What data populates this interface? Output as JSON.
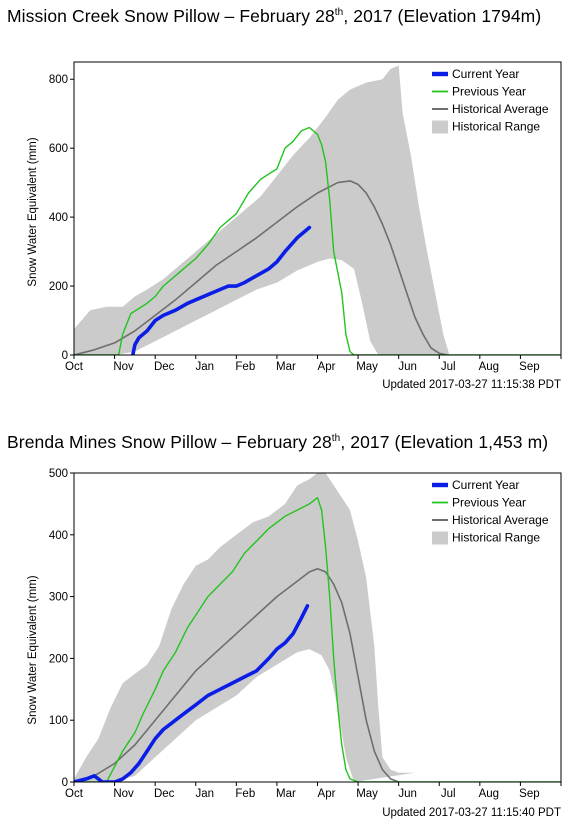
{
  "charts": [
    {
      "title": {
        "prefix": "Mission Creek Snow Pillow – February 28",
        "sup": "th",
        "suffix": ", 2017 (Elevation 1794m)"
      },
      "ylabel": "Snow Water Equivalent (mm)",
      "updated": "Updated 2017-03-27 11:15:38 PDT",
      "legend": [
        "Current Year",
        "Previous Year",
        "Historical Average",
        "Historical Range"
      ]
    },
    {
      "title": {
        "prefix": "Brenda Mines Snow Pillow – February 28",
        "sup": "th",
        "suffix": ", 2017 (Elevation 1,453 m)"
      },
      "ylabel": "Snow Water Equivalent (mm)",
      "updated": "Updated 2017-03-27 11:15:40 PDT",
      "legend": [
        "Current Year",
        "Previous Year",
        "Historical Average",
        "Historical Range"
      ]
    }
  ],
  "colors": {
    "current": "#0a1ee6",
    "previous": "#22c41e",
    "average": "#6e6e6e",
    "range": "#cbcbcb"
  },
  "chart_data": [
    {
      "type": "line",
      "title": "Mission Creek Snow Pillow – February 28th, 2017 (Elevation 1794m)",
      "xlabel": "",
      "ylabel": "Snow Water Equivalent (mm)",
      "xlim": [
        0,
        12
      ],
      "ylim": [
        0,
        850
      ],
      "yticks": [
        0,
        200,
        400,
        600,
        800
      ],
      "x_tick_labels": [
        "Oct",
        "Nov",
        "Dec",
        "Jan",
        "Feb",
        "Mar",
        "Apr",
        "May",
        "Jun",
        "Jul",
        "Aug",
        "Sep"
      ],
      "legend_position": "top-right",
      "range": {
        "upper": [
          [
            0,
            75
          ],
          [
            0.4,
            130
          ],
          [
            0.8,
            140
          ],
          [
            1.2,
            140
          ],
          [
            1.5,
            170
          ],
          [
            1.8,
            190
          ],
          [
            2.2,
            220
          ],
          [
            2.6,
            260
          ],
          [
            3,
            300
          ],
          [
            3.4,
            340
          ],
          [
            3.8,
            380
          ],
          [
            4.2,
            420
          ],
          [
            4.6,
            460
          ],
          [
            5,
            520
          ],
          [
            5.4,
            580
          ],
          [
            5.8,
            630
          ],
          [
            6.2,
            690
          ],
          [
            6.5,
            740
          ],
          [
            6.8,
            770
          ],
          [
            7.2,
            790
          ],
          [
            7.6,
            800
          ],
          [
            7.8,
            830
          ],
          [
            8,
            840
          ],
          [
            8.1,
            700
          ],
          [
            8.3,
            580
          ],
          [
            8.5,
            430
          ],
          [
            8.7,
            300
          ],
          [
            8.9,
            180
          ],
          [
            9.1,
            60
          ],
          [
            9.25,
            0
          ]
        ],
        "lower": [
          [
            0,
            0
          ],
          [
            1,
            0
          ],
          [
            1.5,
            10
          ],
          [
            2,
            40
          ],
          [
            2.5,
            70
          ],
          [
            3,
            100
          ],
          [
            3.5,
            130
          ],
          [
            4,
            160
          ],
          [
            4.5,
            190
          ],
          [
            5,
            210
          ],
          [
            5.5,
            245
          ],
          [
            6,
            270
          ],
          [
            6.3,
            280
          ],
          [
            6.6,
            275
          ],
          [
            6.9,
            250
          ],
          [
            7.1,
            150
          ],
          [
            7.3,
            40
          ],
          [
            7.5,
            0
          ]
        ]
      },
      "series": [
        {
          "name": "Current Year",
          "x": [
            1.45,
            1.5,
            1.6,
            1.8,
            2,
            2.2,
            2.5,
            2.8,
            3,
            3.3,
            3.6,
            3.8,
            4,
            4.2,
            4.5,
            4.8,
            5,
            5.2,
            5.5,
            5.8
          ],
          "y": [
            0,
            30,
            50,
            70,
            100,
            115,
            130,
            150,
            160,
            175,
            190,
            200,
            200,
            210,
            230,
            250,
            270,
            300,
            340,
            370
          ]
        },
        {
          "name": "Previous Year",
          "x": [
            0,
            1.1,
            1.2,
            1.4,
            1.8,
            2,
            2.2,
            2.6,
            3,
            3.3,
            3.6,
            4,
            4.3,
            4.6,
            5,
            5.2,
            5.4,
            5.6,
            5.8,
            6,
            6.1,
            6.2,
            6.3,
            6.4,
            6.6,
            6.7,
            6.8,
            6.9,
            7,
            7.1,
            7.2,
            7.3,
            7.4,
            7.55,
            7.7,
            7.8
          ],
          "y": [
            0,
            0,
            60,
            120,
            150,
            170,
            200,
            240,
            280,
            320,
            370,
            410,
            470,
            510,
            540,
            600,
            620,
            650,
            660,
            640,
            610,
            560,
            450,
            300,
            180,
            60,
            10,
            0,
            0,
            0,
            0,
            0,
            0,
            0,
            0,
            0
          ]
        },
        {
          "name": "Historical Average",
          "x": [
            0,
            0.5,
            1,
            1.5,
            2,
            2.5,
            3,
            3.5,
            4,
            4.5,
            5,
            5.5,
            6,
            6.5,
            6.8,
            7,
            7.2,
            7.4,
            7.6,
            7.8,
            8,
            8.2,
            8.4,
            8.6,
            8.8,
            9,
            9.2
          ],
          "y": [
            0,
            15,
            35,
            70,
            115,
            160,
            210,
            260,
            300,
            340,
            385,
            430,
            470,
            500,
            505,
            495,
            470,
            430,
            380,
            320,
            250,
            180,
            110,
            60,
            20,
            5,
            0
          ]
        }
      ]
    },
    {
      "type": "line",
      "title": "Brenda Mines Snow Pillow – February 28th, 2017 (Elevation 1,453 m)",
      "xlabel": "",
      "ylabel": "Snow Water Equivalent (mm)",
      "xlim": [
        0,
        12
      ],
      "ylim": [
        0,
        500
      ],
      "yticks": [
        0,
        100,
        200,
        300,
        400,
        500
      ],
      "x_tick_labels": [
        "Oct",
        "Nov",
        "Dec",
        "Jan",
        "Feb",
        "Mar",
        "Apr",
        "May",
        "Jun",
        "Jul",
        "Aug",
        "Sep"
      ],
      "legend_position": "top-right",
      "range": {
        "upper": [
          [
            0,
            5
          ],
          [
            0.3,
            40
          ],
          [
            0.6,
            70
          ],
          [
            0.9,
            120
          ],
          [
            1.2,
            160
          ],
          [
            1.5,
            175
          ],
          [
            1.8,
            190
          ],
          [
            2.1,
            220
          ],
          [
            2.4,
            280
          ],
          [
            2.7,
            320
          ],
          [
            3,
            350
          ],
          [
            3.3,
            360
          ],
          [
            3.6,
            380
          ],
          [
            4,
            400
          ],
          [
            4.4,
            420
          ],
          [
            4.8,
            430
          ],
          [
            5.2,
            450
          ],
          [
            5.5,
            480
          ],
          [
            5.8,
            490
          ],
          [
            6,
            500
          ],
          [
            6.2,
            500
          ],
          [
            6.4,
            480
          ],
          [
            6.6,
            460
          ],
          [
            6.8,
            440
          ],
          [
            7,
            390
          ],
          [
            7.2,
            330
          ],
          [
            7.4,
            220
          ],
          [
            7.5,
            120
          ],
          [
            7.6,
            40
          ],
          [
            7.8,
            20
          ],
          [
            8,
            15
          ],
          [
            8.4,
            15
          ]
        ],
        "lower": [
          [
            0,
            0
          ],
          [
            1,
            0
          ],
          [
            1.5,
            10
          ],
          [
            2,
            40
          ],
          [
            2.5,
            70
          ],
          [
            3,
            100
          ],
          [
            3.5,
            120
          ],
          [
            4,
            140
          ],
          [
            4.5,
            170
          ],
          [
            5,
            190
          ],
          [
            5.5,
            210
          ],
          [
            5.8,
            215
          ],
          [
            6.1,
            205
          ],
          [
            6.3,
            180
          ],
          [
            6.5,
            120
          ],
          [
            6.7,
            40
          ],
          [
            6.9,
            0
          ]
        ]
      },
      "series": [
        {
          "name": "Current Year",
          "x": [
            0,
            0.3,
            0.5,
            0.7,
            1,
            1.2,
            1.4,
            1.6,
            1.8,
            2,
            2.2,
            2.4,
            2.6,
            2.8,
            3,
            3.3,
            3.6,
            3.9,
            4.2,
            4.5,
            4.8,
            5,
            5.2,
            5.4,
            5.6,
            5.75
          ],
          "y": [
            0,
            5,
            10,
            0,
            0,
            5,
            15,
            30,
            50,
            70,
            85,
            95,
            105,
            115,
            125,
            140,
            150,
            160,
            170,
            180,
            200,
            215,
            225,
            240,
            265,
            285
          ]
        },
        {
          "name": "Previous Year",
          "x": [
            0,
            0.8,
            1.2,
            1.5,
            1.7,
            2,
            2.2,
            2.5,
            2.8,
            3,
            3.3,
            3.6,
            3.9,
            4.2,
            4.5,
            4.8,
            5,
            5.2,
            5.5,
            5.8,
            6,
            6.1,
            6.2,
            6.3,
            6.4,
            6.5,
            6.6,
            6.7,
            6.8,
            7,
            7.2,
            7.4
          ],
          "y": [
            0,
            0,
            50,
            80,
            110,
            150,
            180,
            210,
            250,
            270,
            300,
            320,
            340,
            370,
            390,
            410,
            420,
            430,
            440,
            450,
            460,
            440,
            380,
            300,
            200,
            120,
            60,
            20,
            5,
            0,
            0,
            0
          ]
        },
        {
          "name": "Historical Average",
          "x": [
            0,
            0.5,
            1,
            1.5,
            2,
            2.5,
            3,
            3.5,
            4,
            4.5,
            5,
            5.5,
            5.8,
            6,
            6.2,
            6.4,
            6.6,
            6.8,
            7,
            7.2,
            7.4,
            7.6,
            7.8,
            8
          ],
          "y": [
            0,
            10,
            30,
            60,
            100,
            140,
            180,
            210,
            240,
            270,
            300,
            325,
            340,
            345,
            340,
            320,
            290,
            240,
            170,
            100,
            50,
            20,
            5,
            0
          ]
        }
      ]
    }
  ]
}
